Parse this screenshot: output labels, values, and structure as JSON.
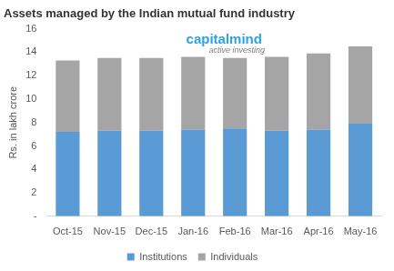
{
  "chart_data": {
    "type": "bar",
    "title": "Assets managed by the Indian mutual fund industry",
    "y_label": "Rs. in lakh crore",
    "annotations": [
      "capitalmind",
      "active investing"
    ],
    "categories": [
      "Oct-15",
      "Nov-15",
      "Dec-15",
      "Jan-16",
      "Feb-16",
      "Mar-16",
      "Apr-16",
      "May-16"
    ],
    "series": [
      {
        "name": "Institutions",
        "color": "#5b9bd5",
        "values": [
          7.2,
          7.3,
          7.3,
          7.4,
          7.5,
          7.3,
          7.4,
          7.9
        ]
      },
      {
        "name": "Individuals",
        "color": "#a5a5a5",
        "values": [
          6.1,
          6.2,
          6.2,
          6.2,
          6.0,
          6.3,
          6.5,
          6.6
        ]
      }
    ],
    "stacked": true,
    "ylim": [
      0,
      16
    ],
    "yticks": [
      {
        "value": 0,
        "label": "-"
      },
      2,
      4,
      6,
      8,
      10,
      12,
      14,
      16
    ],
    "grid": false,
    "legend": "bottom"
  }
}
